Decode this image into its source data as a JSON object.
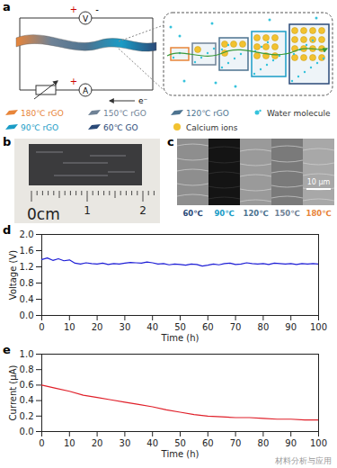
{
  "figure": {
    "a": {
      "label": "a",
      "circuit": {
        "voltmeter": "V",
        "ammeter": "A",
        "positive": "+",
        "negative": "-",
        "electron": "e⁻"
      },
      "legend": [
        {
          "name": "180℃ rGO",
          "color": "#e8853a",
          "marker": "film"
        },
        {
          "name": "150℃ rGO",
          "color": "#6f8296",
          "marker": "film"
        },
        {
          "name": "120℃ rGO",
          "color": "#4d7390",
          "marker": "film"
        },
        {
          "name": "Water molecule",
          "color": "#36c3dc",
          "marker": "water"
        },
        {
          "name": "90℃ rGO",
          "color": "#1a9cc6",
          "marker": "film"
        },
        {
          "name": "60℃ GO",
          "color": "#2a4a78",
          "marker": "film"
        },
        {
          "name": "Calcium ions",
          "color": "#f2c230",
          "marker": "circle"
        }
      ]
    },
    "b": {
      "label": "b",
      "ruler": [
        "0cm",
        "1",
        "2"
      ]
    },
    "c": {
      "label": "c",
      "images": [
        {
          "name": "60℃",
          "color": "#2a4a78"
        },
        {
          "name": "90℃",
          "color": "#1a9cc6"
        },
        {
          "name": "120℃",
          "color": "#4d7390"
        },
        {
          "name": "150℃",
          "color": "#6f8296"
        },
        {
          "name": "180℃",
          "color": "#e8853a"
        }
      ],
      "scale_bar": "10 μm"
    },
    "watermark": "材料分析与应用"
  },
  "chart_data": [
    {
      "panel": "d",
      "type": "line",
      "color": "#1f1fd6",
      "xlabel": "Time (h)",
      "ylabel": "Voltage (V)",
      "x": [
        0,
        2,
        4,
        6,
        8,
        10,
        12,
        14,
        16,
        18,
        20,
        22,
        24,
        26,
        28,
        30,
        32,
        34,
        36,
        38,
        40,
        42,
        44,
        46,
        48,
        50,
        52,
        54,
        56,
        58,
        60,
        62,
        64,
        66,
        68,
        70,
        72,
        74,
        76,
        78,
        80,
        82,
        84,
        86,
        88,
        90,
        92,
        94,
        96,
        98,
        100
      ],
      "values": [
        1.38,
        1.42,
        1.36,
        1.4,
        1.35,
        1.37,
        1.29,
        1.27,
        1.3,
        1.28,
        1.27,
        1.29,
        1.26,
        1.28,
        1.27,
        1.29,
        1.31,
        1.3,
        1.29,
        1.32,
        1.3,
        1.27,
        1.28,
        1.25,
        1.27,
        1.26,
        1.24,
        1.27,
        1.26,
        1.22,
        1.24,
        1.27,
        1.25,
        1.28,
        1.29,
        1.26,
        1.27,
        1.3,
        1.28,
        1.27,
        1.28,
        1.26,
        1.29,
        1.28,
        1.27,
        1.28,
        1.26,
        1.28,
        1.27,
        1.28,
        1.27
      ],
      "xlim": [
        0,
        100
      ],
      "xticks": [
        0,
        10,
        20,
        30,
        40,
        50,
        60,
        70,
        80,
        90,
        100
      ],
      "ylim": [
        0,
        2
      ],
      "yticks": [
        {
          "value": 0,
          "label": "0.0"
        },
        0.4,
        0.8,
        1.2,
        1.6,
        {
          "value": 2,
          "label": "2.0"
        }
      ]
    },
    {
      "panel": "e",
      "type": "line",
      "color": "#e0202a",
      "xlabel": "Time (h)",
      "ylabel": "Current (μA)",
      "x": [
        0,
        5,
        10,
        15,
        20,
        25,
        30,
        35,
        40,
        45,
        50,
        55,
        60,
        65,
        70,
        75,
        80,
        85,
        90,
        95,
        100
      ],
      "values": [
        0.6,
        0.56,
        0.52,
        0.47,
        0.44,
        0.41,
        0.38,
        0.35,
        0.32,
        0.28,
        0.25,
        0.22,
        0.2,
        0.19,
        0.18,
        0.18,
        0.17,
        0.16,
        0.16,
        0.15,
        0.15
      ],
      "xlim": [
        0,
        100
      ],
      "xticks": [
        0,
        10,
        20,
        30,
        40,
        50,
        60,
        70,
        80,
        90,
        100
      ],
      "ylim": [
        0,
        1
      ],
      "yticks": [
        {
          "value": 0,
          "label": "0.0"
        },
        0.2,
        0.4,
        0.6,
        0.8,
        {
          "value": 1,
          "label": "1.0"
        }
      ]
    }
  ]
}
